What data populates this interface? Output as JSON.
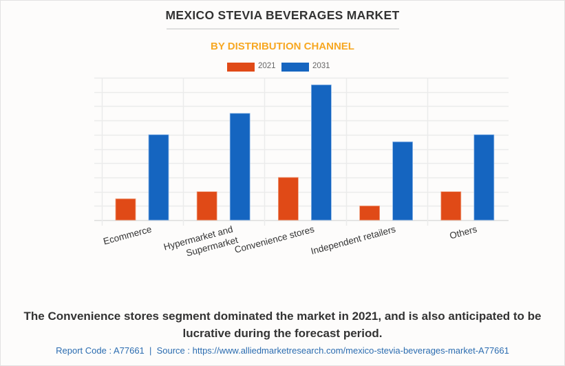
{
  "header": {
    "title": "MEXICO STEVIA BEVERAGES MARKET",
    "subtitle": "BY DISTRIBUTION CHANNEL"
  },
  "colors": {
    "series_2021": "#e04a17",
    "series_2031": "#1565c0",
    "subtitle": "#f7a823",
    "gridline": "#ebebeb"
  },
  "chart_data": {
    "type": "bar",
    "title": "MEXICO STEVIA BEVERAGES MARKET",
    "subtitle": "BY DISTRIBUTION CHANNEL",
    "xlabel": "",
    "ylabel": "",
    "categories": [
      "Ecommerce",
      "Hypermarket and Supermarket",
      "Convenience stores",
      "Independent retailers",
      "Others"
    ],
    "category_lines": [
      [
        "Ecommerce"
      ],
      [
        "Hypermarket and",
        "Supermarket"
      ],
      [
        "Convenience stores"
      ],
      [
        "Independent retailers"
      ],
      [
        "Others"
      ]
    ],
    "series": [
      {
        "name": "2021",
        "values": [
          1.5,
          2.0,
          3.0,
          1.0,
          2.0
        ]
      },
      {
        "name": "2031",
        "values": [
          6.0,
          7.5,
          9.5,
          5.5,
          6.0
        ]
      }
    ],
    "ylim": [
      0,
      10
    ],
    "y_gridlines": 10,
    "y_tick_labels_visible": false,
    "grid": true,
    "legend": "top-center"
  },
  "caption": "The Convenience stores segment dominated the market in 2021, and is also anticipated to be lucrative during the forecast period.",
  "footer": "Report Code : A77661  |  Source : https://www.alliedmarketresearch.com/mexico-stevia-beverages-market-A77661"
}
